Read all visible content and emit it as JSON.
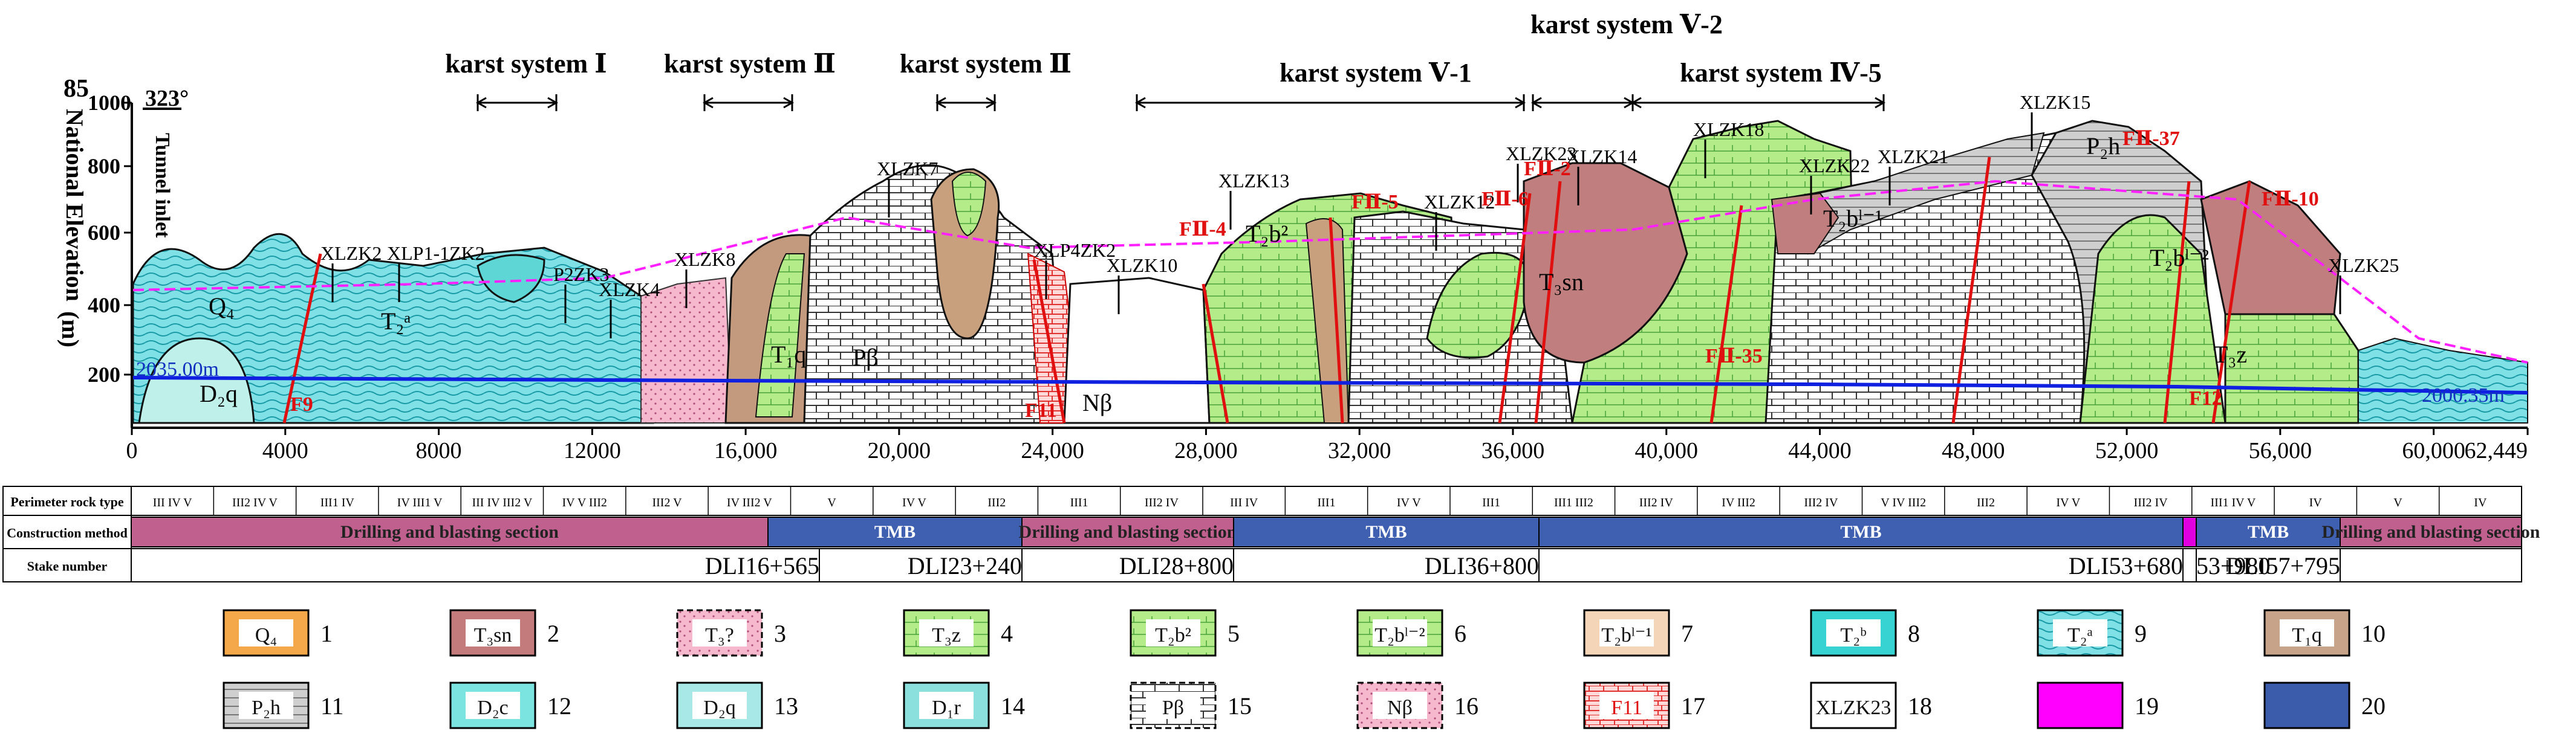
{
  "y_axis": {
    "label": "National Elevation",
    "unit": "(m)",
    "top_value": "85",
    "ticks": [
      "1000",
      "800",
      "600",
      "400",
      "200"
    ]
  },
  "x_axis": {
    "ticks": [
      "0",
      "4000",
      "8000",
      "12000",
      "16,000",
      "20,000",
      "24,000",
      "28,000",
      "32,000",
      "36,000",
      "40,000",
      "44,000",
      "48,000",
      "52,000",
      "56,000",
      "60,000",
      "62,449"
    ]
  },
  "top_labels": {
    "bearing": "323°",
    "tunnel_inlet": "Tunnel inlet"
  },
  "karst_systems": [
    {
      "label": "karst system Ⅰ"
    },
    {
      "label": "karst system Ⅱ"
    },
    {
      "label": "karst system Ⅱ"
    },
    {
      "label": "karst system Ⅴ-1"
    },
    {
      "label": "karst system Ⅴ-2"
    },
    {
      "label": "karst system Ⅳ-5"
    }
  ],
  "boreholes": [
    "XLZK2",
    "XLP1-1ZK2",
    "P2ZK3",
    "XLZK4",
    "XLZK8",
    "XLZK7",
    "XLP4ZK2",
    "XLZK10",
    "XLZK13",
    "XLZK12",
    "XLZK23",
    "XLZK14",
    "XLZK18",
    "XLZK22",
    "XLZK21",
    "XLZK15",
    "XLZK25"
  ],
  "faults": [
    "F9",
    "F11",
    "FⅡ-4",
    "FⅡ-5",
    "FⅡ-6",
    "FⅡ-2",
    "FⅡ-35",
    "FⅡ-37",
    "FⅡ-10",
    "F12"
  ],
  "strata_labels": [
    "Q₄",
    "T₂ᵃ",
    "D₂q",
    "T₁q",
    "Pβ",
    "Nβ",
    "T₂b²",
    "T₃sn",
    "T₃z",
    "T₂bˡ⁻¹",
    "T₂bˡ⁻²",
    "P₂h"
  ],
  "elevation_marks": {
    "left": "2035.00m",
    "right": "2000.35m"
  },
  "table": {
    "row_labels": [
      "Perimeter rock type",
      "Construction method",
      "Stake number"
    ],
    "rock_types": [
      "III IV V",
      "III2 IV V",
      "III1 IV",
      "IV III1 V",
      "III IV III2 V",
      "IV V III2",
      "III2 V",
      "IV III2 V",
      "V",
      "IV V",
      "III2",
      "III1",
      "III2 IV",
      "III IV",
      "III1",
      "IV V",
      "III1",
      "III1 III2",
      "III2 IV",
      "IV III2",
      "III2 IV",
      "V IV III2",
      "III2",
      "IV V",
      "III2 IV",
      "III1 IV V",
      "IV",
      "V",
      "IV"
    ],
    "methods": [
      {
        "label": "Drilling and blasting section",
        "color": "#c0608e"
      },
      {
        "label": "TMB",
        "color": "#3f5fb0"
      },
      {
        "label": "Drilling and blasting section",
        "color": "#c0608e"
      },
      {
        "label": "TMB",
        "color": "#3f5fb0"
      },
      {
        "label": "TMB",
        "color": "#3f5fb0"
      },
      {
        "label": "",
        "color": "#e000e0"
      },
      {
        "label": "TMB",
        "color": "#3f5fb0"
      },
      {
        "label": "Drilling and blasting section",
        "color": "#c0608e"
      }
    ],
    "stakes": [
      "DLI16+565",
      "DLI23+240",
      "DLI28+800",
      "DLI36+800",
      "DLI53+680",
      "53+980",
      "DLI57+795"
    ]
  },
  "legend": [
    {
      "num": "1",
      "code": "Q₄",
      "color": "#f5a84a"
    },
    {
      "num": "2",
      "code": "T₃sn",
      "color": "#c47b7b"
    },
    {
      "num": "3",
      "code": "T₃?",
      "color": "#f7c1d0"
    },
    {
      "num": "4",
      "code": "T₃z",
      "color": "#9bd58a"
    },
    {
      "num": "5",
      "code": "T₂b²",
      "color": "#c8f09a"
    },
    {
      "num": "6",
      "code": "T₂bˡ⁻²",
      "color": "#d9f5b0"
    },
    {
      "num": "7",
      "code": "T₂bˡ⁻¹",
      "color": "#f5d5b8"
    },
    {
      "num": "8",
      "code": "T₂ᵇ",
      "color": "#37d2d2"
    },
    {
      "num": "9",
      "code": "T₂ᵃ",
      "color": "#9ee6ea"
    },
    {
      "num": "10",
      "code": "T₁q",
      "color": "#c7a38a"
    },
    {
      "num": "11",
      "code": "P₂h",
      "color": "#dedede"
    },
    {
      "num": "12",
      "code": "D₂c",
      "color": "#7be3e0"
    },
    {
      "num": "13",
      "code": "D₂q",
      "color": "#a8e8e6"
    },
    {
      "num": "14",
      "code": "D₁r",
      "color": "#8be0dd"
    },
    {
      "num": "15",
      "code": "Pβ",
      "color": "#ffffff"
    },
    {
      "num": "16",
      "code": "Nβ",
      "color": "#ffffff"
    },
    {
      "num": "17",
      "code": "F11",
      "color": "#ffffff"
    },
    {
      "num": "18",
      "code": "XLZK23",
      "color": "#ffffff"
    },
    {
      "num": "19",
      "code": "",
      "color": "#ff00ff"
    },
    {
      "num": "20",
      "code": "",
      "color": "#3a5cab"
    }
  ]
}
